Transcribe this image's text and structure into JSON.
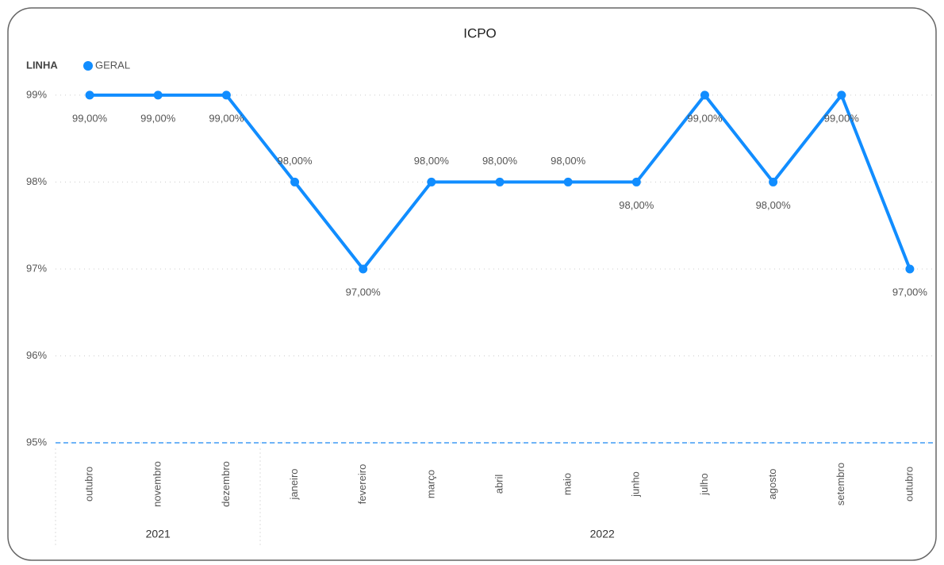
{
  "chart_data": {
    "type": "line",
    "title": "ICPO",
    "legend_title": "LINHA",
    "categories": [
      "outubro",
      "novembro",
      "dezembro",
      "janeiro",
      "fevereiro",
      "março",
      "abril",
      "maio",
      "junho",
      "julho",
      "agosto",
      "setembro",
      "outubro"
    ],
    "year_groups": [
      {
        "label": "2021",
        "span": 3
      },
      {
        "label": "2022",
        "span": 10
      }
    ],
    "series": [
      {
        "name": "GERAL",
        "color": "#118dff",
        "values": [
          99,
          99,
          99,
          98,
          97,
          98,
          98,
          98,
          98,
          99,
          98,
          99,
          97
        ],
        "value_labels": [
          "99,00%",
          "99,00%",
          "99,00%",
          "98,00%",
          "97,00%",
          "98,00%",
          "98,00%",
          "98,00%",
          "98,00%",
          "99,00%",
          "98,00%",
          "99,00%",
          "97,00%"
        ]
      }
    ],
    "ylim": [
      95,
      99.2
    ],
    "yticks": [
      {
        "value": 95,
        "label": "95%"
      },
      {
        "value": 96,
        "label": "96%"
      },
      {
        "value": 97,
        "label": "97%"
      },
      {
        "value": 98,
        "label": "98%"
      },
      {
        "value": 99,
        "label": "99%"
      }
    ],
    "grid": true,
    "reference_line": {
      "value": 95,
      "color": "#6fb4f7"
    }
  }
}
